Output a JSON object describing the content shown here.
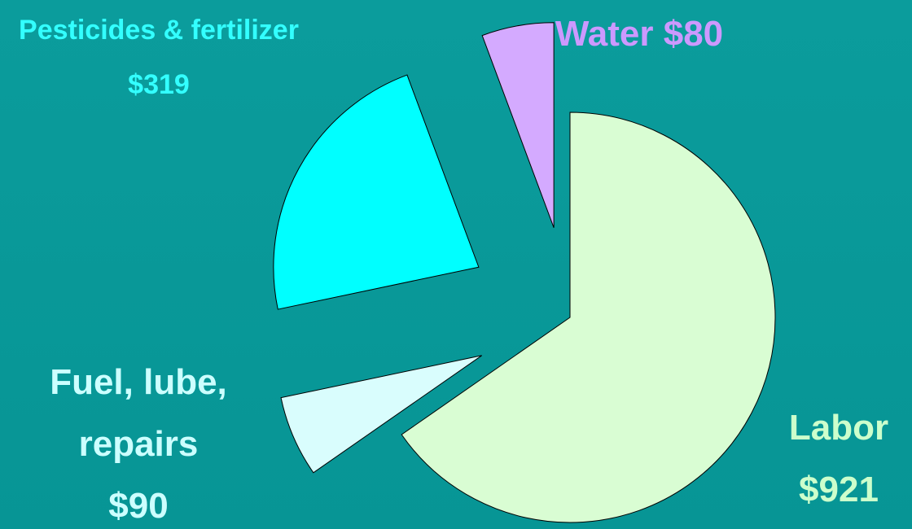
{
  "chart_data": {
    "type": "pie",
    "categories": [
      "Labor",
      "Fuel, lube, repairs",
      "Pesticides & fertilizer",
      "Water"
    ],
    "values": [
      921,
      90,
      319,
      80
    ],
    "value_labels": [
      "$921",
      "$90",
      "$319",
      "$80"
    ],
    "colors": [
      "#d9fdd3",
      "#d9fdfd",
      "#00ffff",
      "#d4aaff"
    ],
    "label_colors": [
      "#ccffcc",
      "#ccffff",
      "#33ffff",
      "#cc99ff"
    ]
  }
}
